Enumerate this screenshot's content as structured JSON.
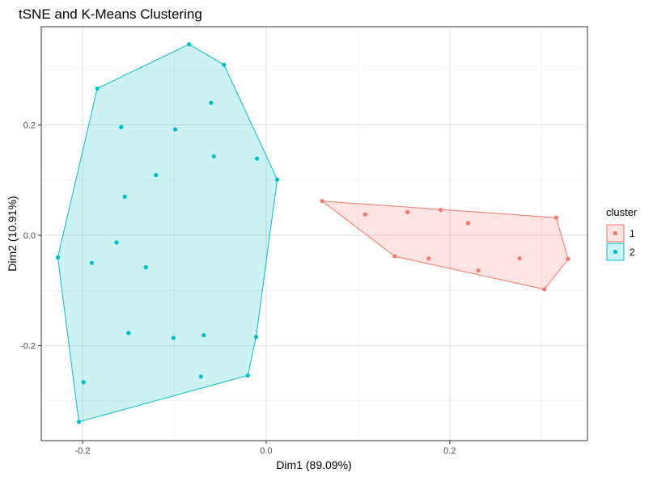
{
  "chart_data": {
    "type": "scatter",
    "title": "tSNE and K-Means Clustering",
    "xlabel": "Dim1 (89.09%)",
    "ylabel": "Dim2 (10.91%)",
    "xlim": [
      -0.245,
      0.35
    ],
    "ylim": [
      -0.372,
      0.378
    ],
    "xticks": [
      -0.2,
      0.0,
      0.2
    ],
    "xtick_labels": [
      "-0.2",
      "0.0",
      "0.2"
    ],
    "yticks": [
      -0.2,
      0.0,
      0.2
    ],
    "ytick_labels": [
      "-0.2",
      "0.0",
      "0.2"
    ],
    "grid": true,
    "legend": {
      "title": "cluster",
      "position": "right"
    },
    "series": [
      {
        "name": "1",
        "color": "#F8766D",
        "points": [
          {
            "x": 0.061,
            "y": 0.062
          },
          {
            "x": 0.108,
            "y": 0.038
          },
          {
            "x": 0.154,
            "y": 0.042
          },
          {
            "x": 0.19,
            "y": 0.046
          },
          {
            "x": 0.22,
            "y": 0.022
          },
          {
            "x": 0.14,
            "y": -0.038
          },
          {
            "x": 0.177,
            "y": -0.042
          },
          {
            "x": 0.231,
            "y": -0.064
          },
          {
            "x": 0.276,
            "y": -0.042
          },
          {
            "x": 0.316,
            "y": 0.032
          },
          {
            "x": 0.329,
            "y": -0.043
          },
          {
            "x": 0.303,
            "y": -0.098
          }
        ],
        "hull": [
          {
            "x": 0.061,
            "y": 0.062
          },
          {
            "x": 0.316,
            "y": 0.032
          },
          {
            "x": 0.329,
            "y": -0.043
          },
          {
            "x": 0.303,
            "y": -0.098
          },
          {
            "x": 0.14,
            "y": -0.038
          }
        ]
      },
      {
        "name": "2",
        "color": "#00BFC4",
        "points": [
          {
            "x": -0.084,
            "y": 0.346
          },
          {
            "x": -0.046,
            "y": 0.309
          },
          {
            "x": -0.184,
            "y": 0.266
          },
          {
            "x": -0.06,
            "y": 0.24
          },
          {
            "x": -0.158,
            "y": 0.196
          },
          {
            "x": -0.099,
            "y": 0.192
          },
          {
            "x": -0.057,
            "y": 0.143
          },
          {
            "x": -0.01,
            "y": 0.139
          },
          {
            "x": -0.12,
            "y": 0.109
          },
          {
            "x": 0.012,
            "y": 0.101
          },
          {
            "x": -0.154,
            "y": 0.07
          },
          {
            "x": -0.163,
            "y": -0.013
          },
          {
            "x": -0.227,
            "y": -0.04
          },
          {
            "x": -0.19,
            "y": -0.05
          },
          {
            "x": -0.131,
            "y": -0.058
          },
          {
            "x": -0.15,
            "y": -0.177
          },
          {
            "x": -0.068,
            "y": -0.181
          },
          {
            "x": -0.101,
            "y": -0.186
          },
          {
            "x": -0.011,
            "y": -0.184
          },
          {
            "x": -0.071,
            "y": -0.256
          },
          {
            "x": -0.02,
            "y": -0.254
          },
          {
            "x": -0.199,
            "y": -0.266
          },
          {
            "x": -0.204,
            "y": -0.338
          }
        ],
        "hull": [
          {
            "x": -0.084,
            "y": 0.346
          },
          {
            "x": -0.046,
            "y": 0.309
          },
          {
            "x": 0.012,
            "y": 0.101
          },
          {
            "x": -0.011,
            "y": -0.184
          },
          {
            "x": -0.02,
            "y": -0.254
          },
          {
            "x": -0.204,
            "y": -0.338
          },
          {
            "x": -0.227,
            "y": -0.04
          },
          {
            "x": -0.184,
            "y": 0.266
          }
        ]
      }
    ]
  }
}
